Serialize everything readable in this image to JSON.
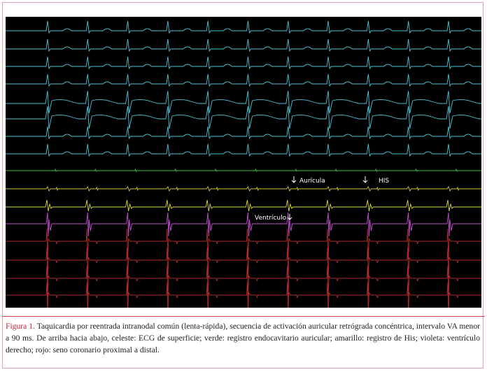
{
  "figure": {
    "annotations": {
      "atrium": "Aurícula",
      "his": "HIS",
      "ventricle": "Ventrículo"
    },
    "caption": {
      "label": "Figura 1.",
      "text": "Taquicardia por reentrada intranodal común (lenta-rápida), secuencia de activación auricular retrógrada concéntrica, intervalo VA menor a 90 ms. De arriba hacia abajo, celeste: ECG de superficie; verde: registro endocavitario auricular; amarillo: registro de His; violeta: ventrículo derecho; rojo: seno coronario proximal a distal."
    }
  }
}
